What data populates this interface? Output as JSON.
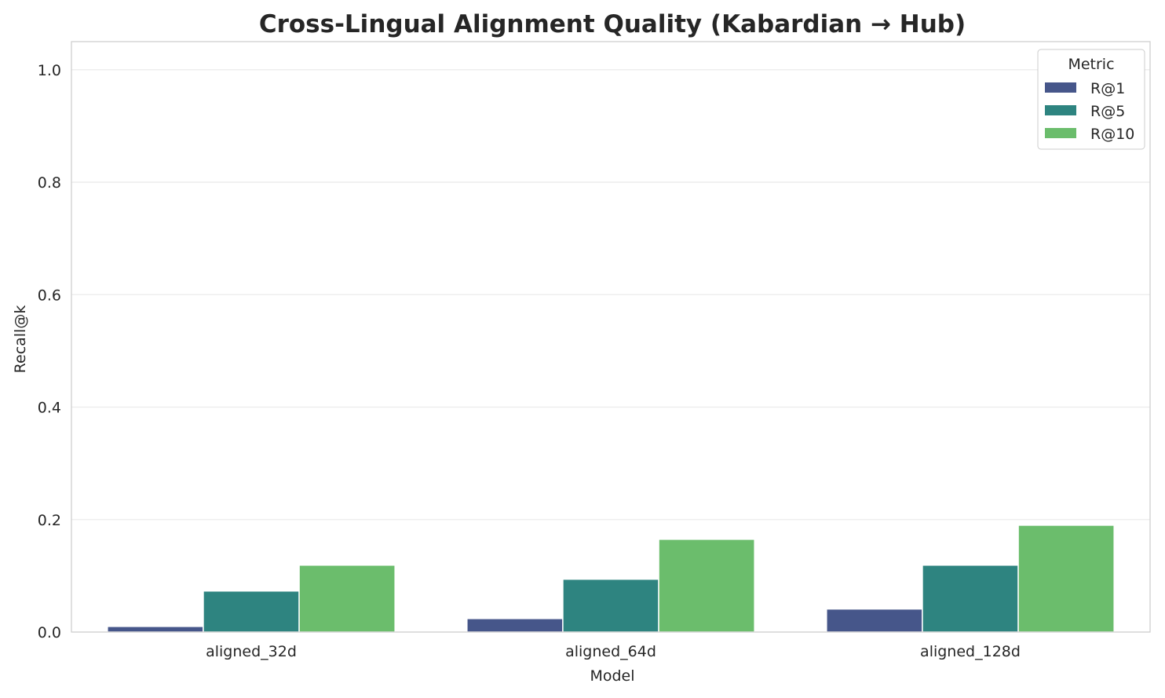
{
  "chart_data": {
    "type": "bar",
    "title": "Cross-Lingual Alignment Quality (Kabardian → Hub)",
    "xlabel": "Model",
    "ylabel": "Recall@k",
    "categories": [
      "aligned_32d",
      "aligned_64d",
      "aligned_128d"
    ],
    "series": [
      {
        "name": "R@1",
        "color": "#46568a",
        "values": [
          0.01,
          0.024,
          0.041
        ]
      },
      {
        "name": "R@5",
        "color": "#2e8480",
        "values": [
          0.073,
          0.094,
          0.119
        ]
      },
      {
        "name": "R@10",
        "color": "#6bbd6c",
        "values": [
          0.119,
          0.165,
          0.19
        ]
      }
    ],
    "ylim": [
      0,
      1.05
    ],
    "yticks": [
      0.0,
      0.2,
      0.4,
      0.6,
      0.8,
      1.0
    ],
    "ytick_labels": [
      "0.0",
      "0.2",
      "0.4",
      "0.6",
      "0.8",
      "1.0"
    ],
    "grid": "horizontal",
    "legend": {
      "title": "Metric",
      "placement": "top-right"
    }
  }
}
